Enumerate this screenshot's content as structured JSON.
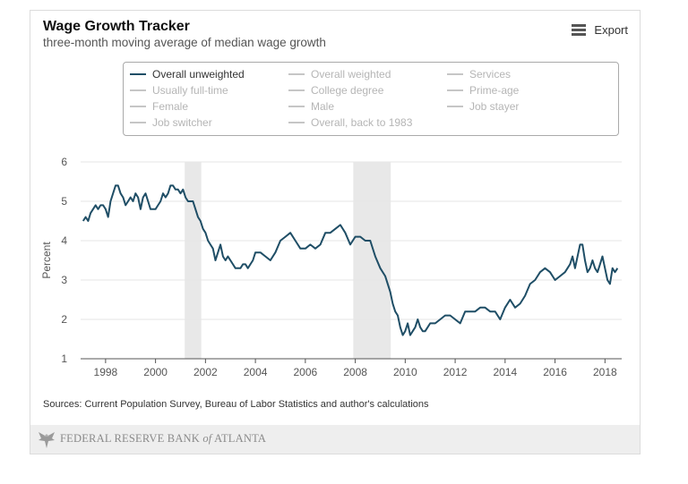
{
  "header": {
    "title": "Wage Growth Tracker",
    "subtitle": "three-month moving average of median wage growth",
    "export_label": "Export",
    "export_icon": "menu-icon"
  },
  "legend": [
    {
      "label": "Overall unweighted",
      "active": true
    },
    {
      "label": "Overall weighted",
      "active": false
    },
    {
      "label": "Services",
      "active": false
    },
    {
      "label": "Usually full-time",
      "active": false
    },
    {
      "label": "College degree",
      "active": false
    },
    {
      "label": "Prime-age",
      "active": false
    },
    {
      "label": "Female",
      "active": false
    },
    {
      "label": "Male",
      "active": false
    },
    {
      "label": "Job stayer",
      "active": false
    },
    {
      "label": "Job switcher",
      "active": false
    },
    {
      "label": "Overall, back to 1983",
      "active": false
    }
  ],
  "colors": {
    "series": "#1f4e66",
    "inactive": "#c6c6c6",
    "inactive_text": "#b5b5b5",
    "recession": "#e8e8e8",
    "grid": "#e6e6e6"
  },
  "chart_data": {
    "type": "line",
    "title": "Wage Growth Tracker",
    "subtitle": "three-month moving average of median wage growth",
    "ylabel": "Percent",
    "xlabel": "",
    "ylim": [
      1,
      6
    ],
    "xlim": [
      1997.0,
      2018.67
    ],
    "y_ticks": [
      1,
      2,
      3,
      4,
      5,
      6
    ],
    "x_ticks": [
      1998,
      2000,
      2002,
      2004,
      2006,
      2008,
      2010,
      2012,
      2014,
      2016,
      2018
    ],
    "grid": "horizontal",
    "recessions": [
      [
        2001.17,
        2001.83
      ],
      [
        2007.92,
        2009.42
      ]
    ],
    "series": [
      {
        "name": "Overall unweighted",
        "x": [
          1997.1,
          1997.2,
          1997.3,
          1997.4,
          1997.5,
          1997.6,
          1997.7,
          1997.8,
          1997.9,
          1998.0,
          1998.1,
          1998.2,
          1998.3,
          1998.4,
          1998.5,
          1998.6,
          1998.7,
          1998.8,
          1998.9,
          1999.0,
          1999.1,
          1999.2,
          1999.3,
          1999.4,
          1999.5,
          1999.6,
          1999.7,
          1999.8,
          1999.9,
          2000.0,
          2000.1,
          2000.2,
          2000.3,
          2000.4,
          2000.5,
          2000.6,
          2000.7,
          2000.8,
          2000.9,
          2001.0,
          2001.1,
          2001.2,
          2001.3,
          2001.4,
          2001.5,
          2001.6,
          2001.7,
          2001.8,
          2001.9,
          2002.0,
          2002.1,
          2002.2,
          2002.3,
          2002.4,
          2002.5,
          2002.6,
          2002.7,
          2002.8,
          2002.9,
          2003.0,
          2003.1,
          2003.2,
          2003.3,
          2003.4,
          2003.5,
          2003.6,
          2003.7,
          2003.8,
          2003.9,
          2004.0,
          2004.2,
          2004.4,
          2004.6,
          2004.8,
          2005.0,
          2005.2,
          2005.4,
          2005.6,
          2005.8,
          2006.0,
          2006.2,
          2006.4,
          2006.6,
          2006.8,
          2007.0,
          2007.2,
          2007.4,
          2007.6,
          2007.8,
          2008.0,
          2008.2,
          2008.4,
          2008.6,
          2008.8,
          2009.0,
          2009.2,
          2009.4,
          2009.5,
          2009.6,
          2009.7,
          2009.8,
          2009.9,
          2010.0,
          2010.1,
          2010.2,
          2010.3,
          2010.4,
          2010.5,
          2010.6,
          2010.7,
          2010.8,
          2010.9,
          2011.0,
          2011.2,
          2011.4,
          2011.6,
          2011.8,
          2012.0,
          2012.2,
          2012.4,
          2012.6,
          2012.8,
          2013.0,
          2013.2,
          2013.4,
          2013.6,
          2013.8,
          2014.0,
          2014.2,
          2014.4,
          2014.6,
          2014.8,
          2015.0,
          2015.2,
          2015.4,
          2015.6,
          2015.8,
          2016.0,
          2016.2,
          2016.4,
          2016.6,
          2016.7,
          2016.8,
          2016.9,
          2017.0,
          2017.1,
          2017.2,
          2017.3,
          2017.4,
          2017.5,
          2017.6,
          2017.7,
          2017.8,
          2017.9,
          2018.0,
          2018.1,
          2018.2,
          2018.3,
          2018.4,
          2018.5
        ],
        "values": [
          4.5,
          4.6,
          4.5,
          4.7,
          4.8,
          4.9,
          4.8,
          4.9,
          4.9,
          4.8,
          4.6,
          5.0,
          5.2,
          5.4,
          5.4,
          5.2,
          5.1,
          4.9,
          5.0,
          5.1,
          5.0,
          5.2,
          5.1,
          4.8,
          5.1,
          5.2,
          5.0,
          4.8,
          4.8,
          4.8,
          4.9,
          5.0,
          5.2,
          5.1,
          5.2,
          5.4,
          5.4,
          5.3,
          5.3,
          5.2,
          5.3,
          5.1,
          5.0,
          5.0,
          5.0,
          4.8,
          4.6,
          4.5,
          4.3,
          4.2,
          4.0,
          3.9,
          3.8,
          3.5,
          3.7,
          3.9,
          3.6,
          3.5,
          3.6,
          3.5,
          3.4,
          3.3,
          3.3,
          3.3,
          3.4,
          3.4,
          3.3,
          3.4,
          3.5,
          3.7,
          3.7,
          3.6,
          3.5,
          3.7,
          4.0,
          4.1,
          4.2,
          4.0,
          3.8,
          3.8,
          3.9,
          3.8,
          3.9,
          4.2,
          4.2,
          4.3,
          4.4,
          4.2,
          3.9,
          4.1,
          4.1,
          4.0,
          4.0,
          3.6,
          3.3,
          3.1,
          2.7,
          2.4,
          2.2,
          2.1,
          1.8,
          1.6,
          1.7,
          1.9,
          1.6,
          1.7,
          1.8,
          2.0,
          1.8,
          1.7,
          1.7,
          1.8,
          1.9,
          1.9,
          2.0,
          2.1,
          2.1,
          2.0,
          1.9,
          2.2,
          2.2,
          2.2,
          2.3,
          2.3,
          2.2,
          2.2,
          2.0,
          2.3,
          2.5,
          2.3,
          2.4,
          2.6,
          2.9,
          3.0,
          3.2,
          3.3,
          3.2,
          3.0,
          3.1,
          3.2,
          3.4,
          3.6,
          3.3,
          3.6,
          3.9,
          3.9,
          3.5,
          3.2,
          3.3,
          3.5,
          3.3,
          3.2,
          3.4,
          3.6,
          3.3,
          3.0,
          2.9,
          3.3,
          3.2,
          3.3
        ]
      }
    ]
  },
  "sources": "Sources: Current Population Survey, Bureau of Labor Statistics and author's calculations",
  "footer": {
    "org_prefix": "FEDERAL RESERVE BANK ",
    "org_of": "of",
    "org_suffix": " ATLANTA"
  }
}
